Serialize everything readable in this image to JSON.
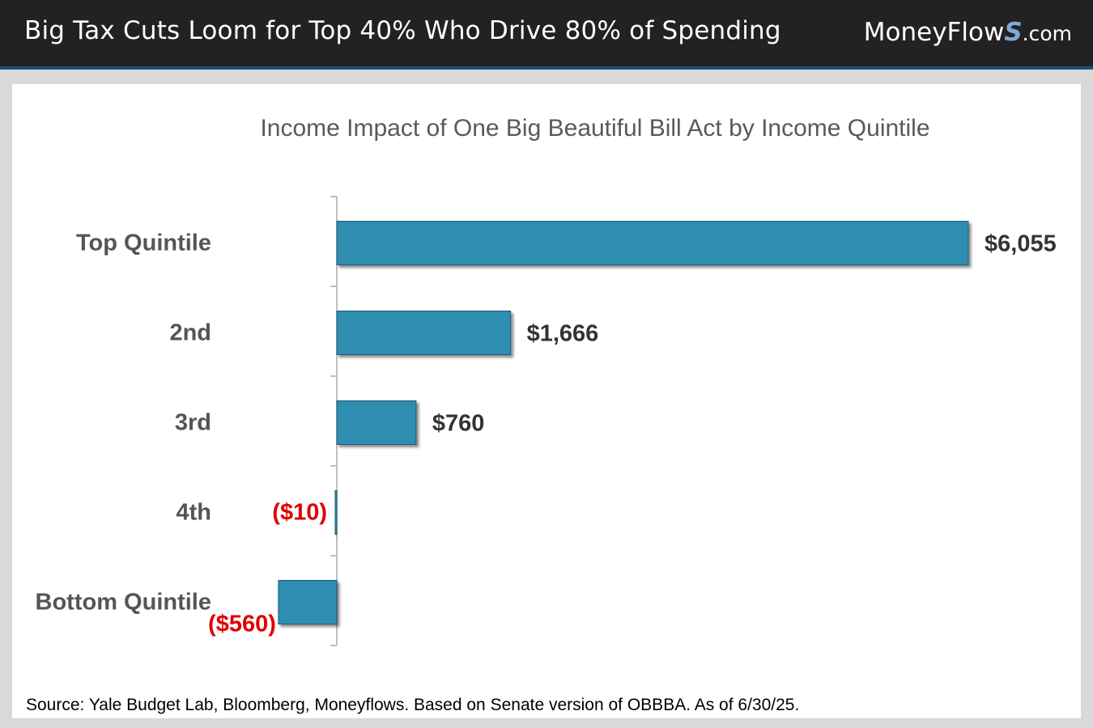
{
  "header": {
    "title": "Big Tax Cuts Loom for Top 40% Who Drive 80% of Spending",
    "brand_prefix": "MoneyFlow",
    "brand_s": "S",
    "brand_suffix": ".com"
  },
  "footer": {
    "source": "Source: Yale Budget Lab, Bloomberg, Moneyflows. Based on Senate version of OBBBA. As of 6/30/25."
  },
  "colors": {
    "bar": "#2f8db0",
    "positive_label": "#333333",
    "negative_label": "#e00000",
    "category_label": "#555555"
  },
  "chart_data": {
    "type": "bar",
    "orientation": "horizontal",
    "title": "Income Impact of One Big Beautiful Bill Act by Income Quintile",
    "categories": [
      "Top Quintile",
      "2nd",
      "3rd",
      "4th",
      "Bottom Quintile"
    ],
    "values": [
      6055,
      1666,
      760,
      -10,
      -560
    ],
    "data_labels": [
      "$6,055",
      "$1,666",
      "$760",
      "($10)",
      "($560)"
    ],
    "xlabel": "",
    "ylabel": "",
    "xlim": [
      -560,
      6055
    ]
  }
}
